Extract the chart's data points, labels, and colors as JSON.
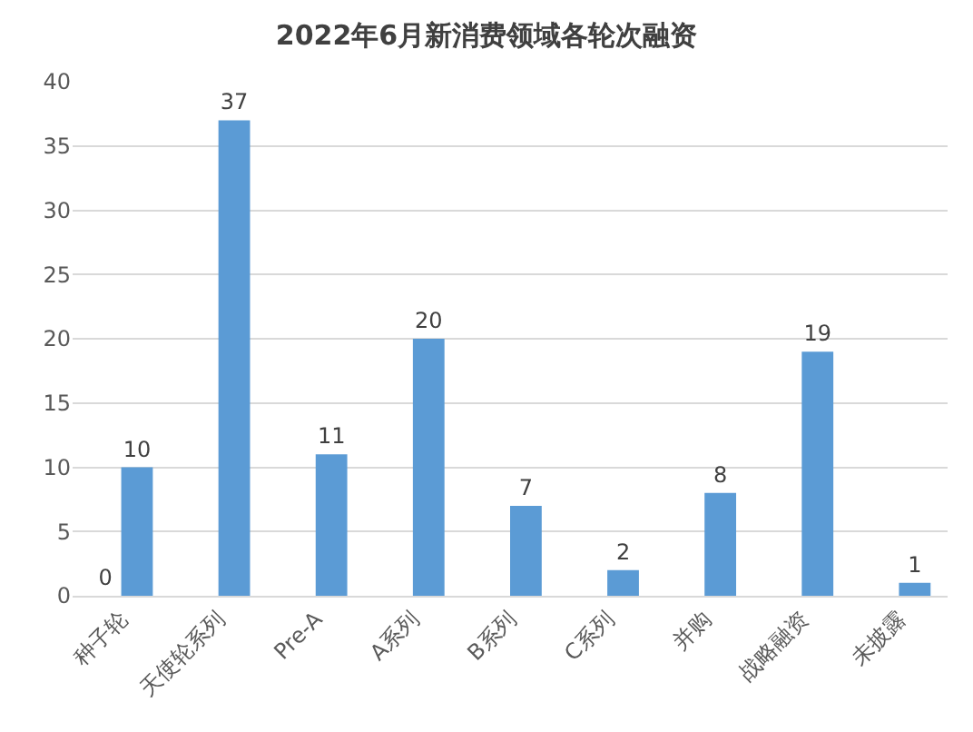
{
  "chart_data": {
    "type": "bar",
    "title": "2022年6月新消费领域各轮次融资",
    "categories": [
      "种子轮",
      "天使轮系列",
      "Pre-A",
      "A系列",
      "B系列",
      "C系列",
      "并购",
      "战略融资",
      "未披露"
    ],
    "series": [
      {
        "color": "#5b9bd5",
        "values": [
          0,
          null,
          null,
          null,
          null,
          null,
          null,
          null,
          null
        ]
      },
      {
        "color": "#5b9bd5",
        "values": [
          10,
          37,
          11,
          20,
          7,
          2,
          8,
          19,
          1
        ]
      }
    ],
    "ylim": [
      0,
      40
    ],
    "yticks": [
      0,
      5,
      10,
      15,
      20,
      25,
      30,
      35,
      40
    ],
    "grid": "y",
    "data_labels": true
  }
}
